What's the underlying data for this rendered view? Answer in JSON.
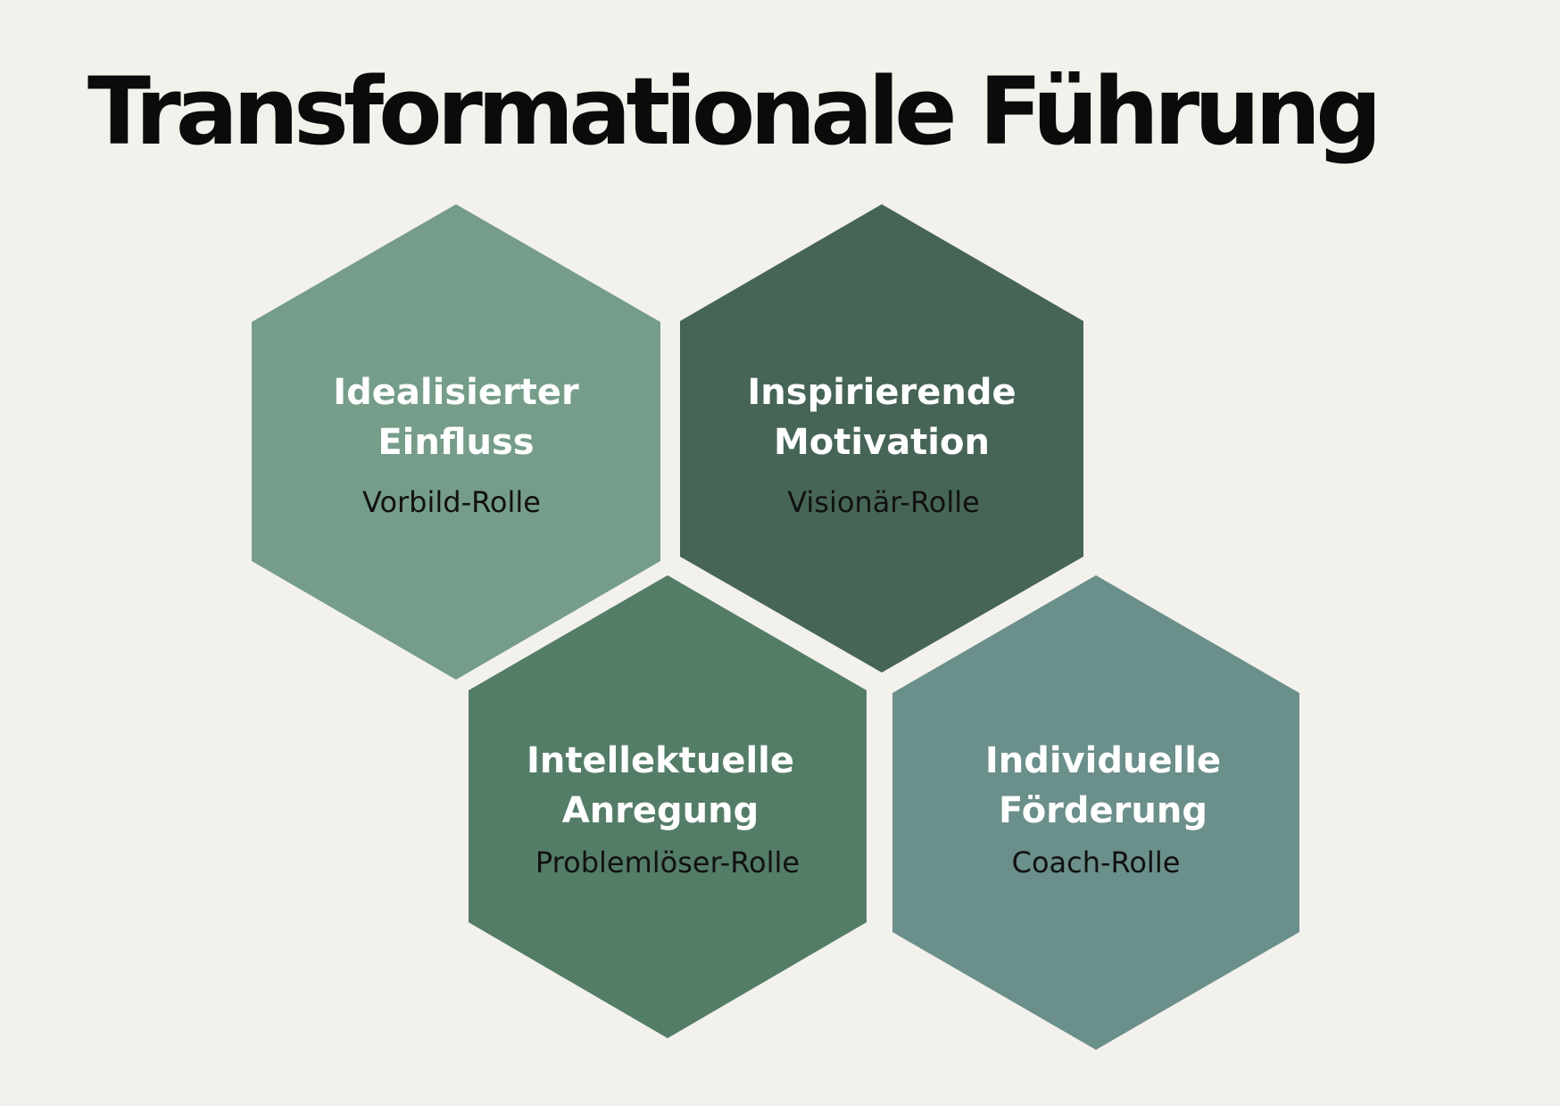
{
  "title": "Transformationale Führung",
  "hexagons": [
    {
      "title_line1": "Idealisierter",
      "title_line2": "Einfluss",
      "subtitle": "Vorbild-Rolle",
      "color": "#759d89"
    },
    {
      "title_line1": "Inspirierende",
      "title_line2": "Motivation",
      "subtitle": "Visionär-Rolle",
      "color": "#466556"
    },
    {
      "title_line1": "Intellektuelle",
      "title_line2": "Anregung",
      "subtitle": "Problemlöser-Rolle",
      "color": "#547d68"
    },
    {
      "title_line1": "Individuelle",
      "title_line2": "Förderung",
      "subtitle": "Coach-Rolle",
      "color": "#6b8f8b"
    }
  ]
}
